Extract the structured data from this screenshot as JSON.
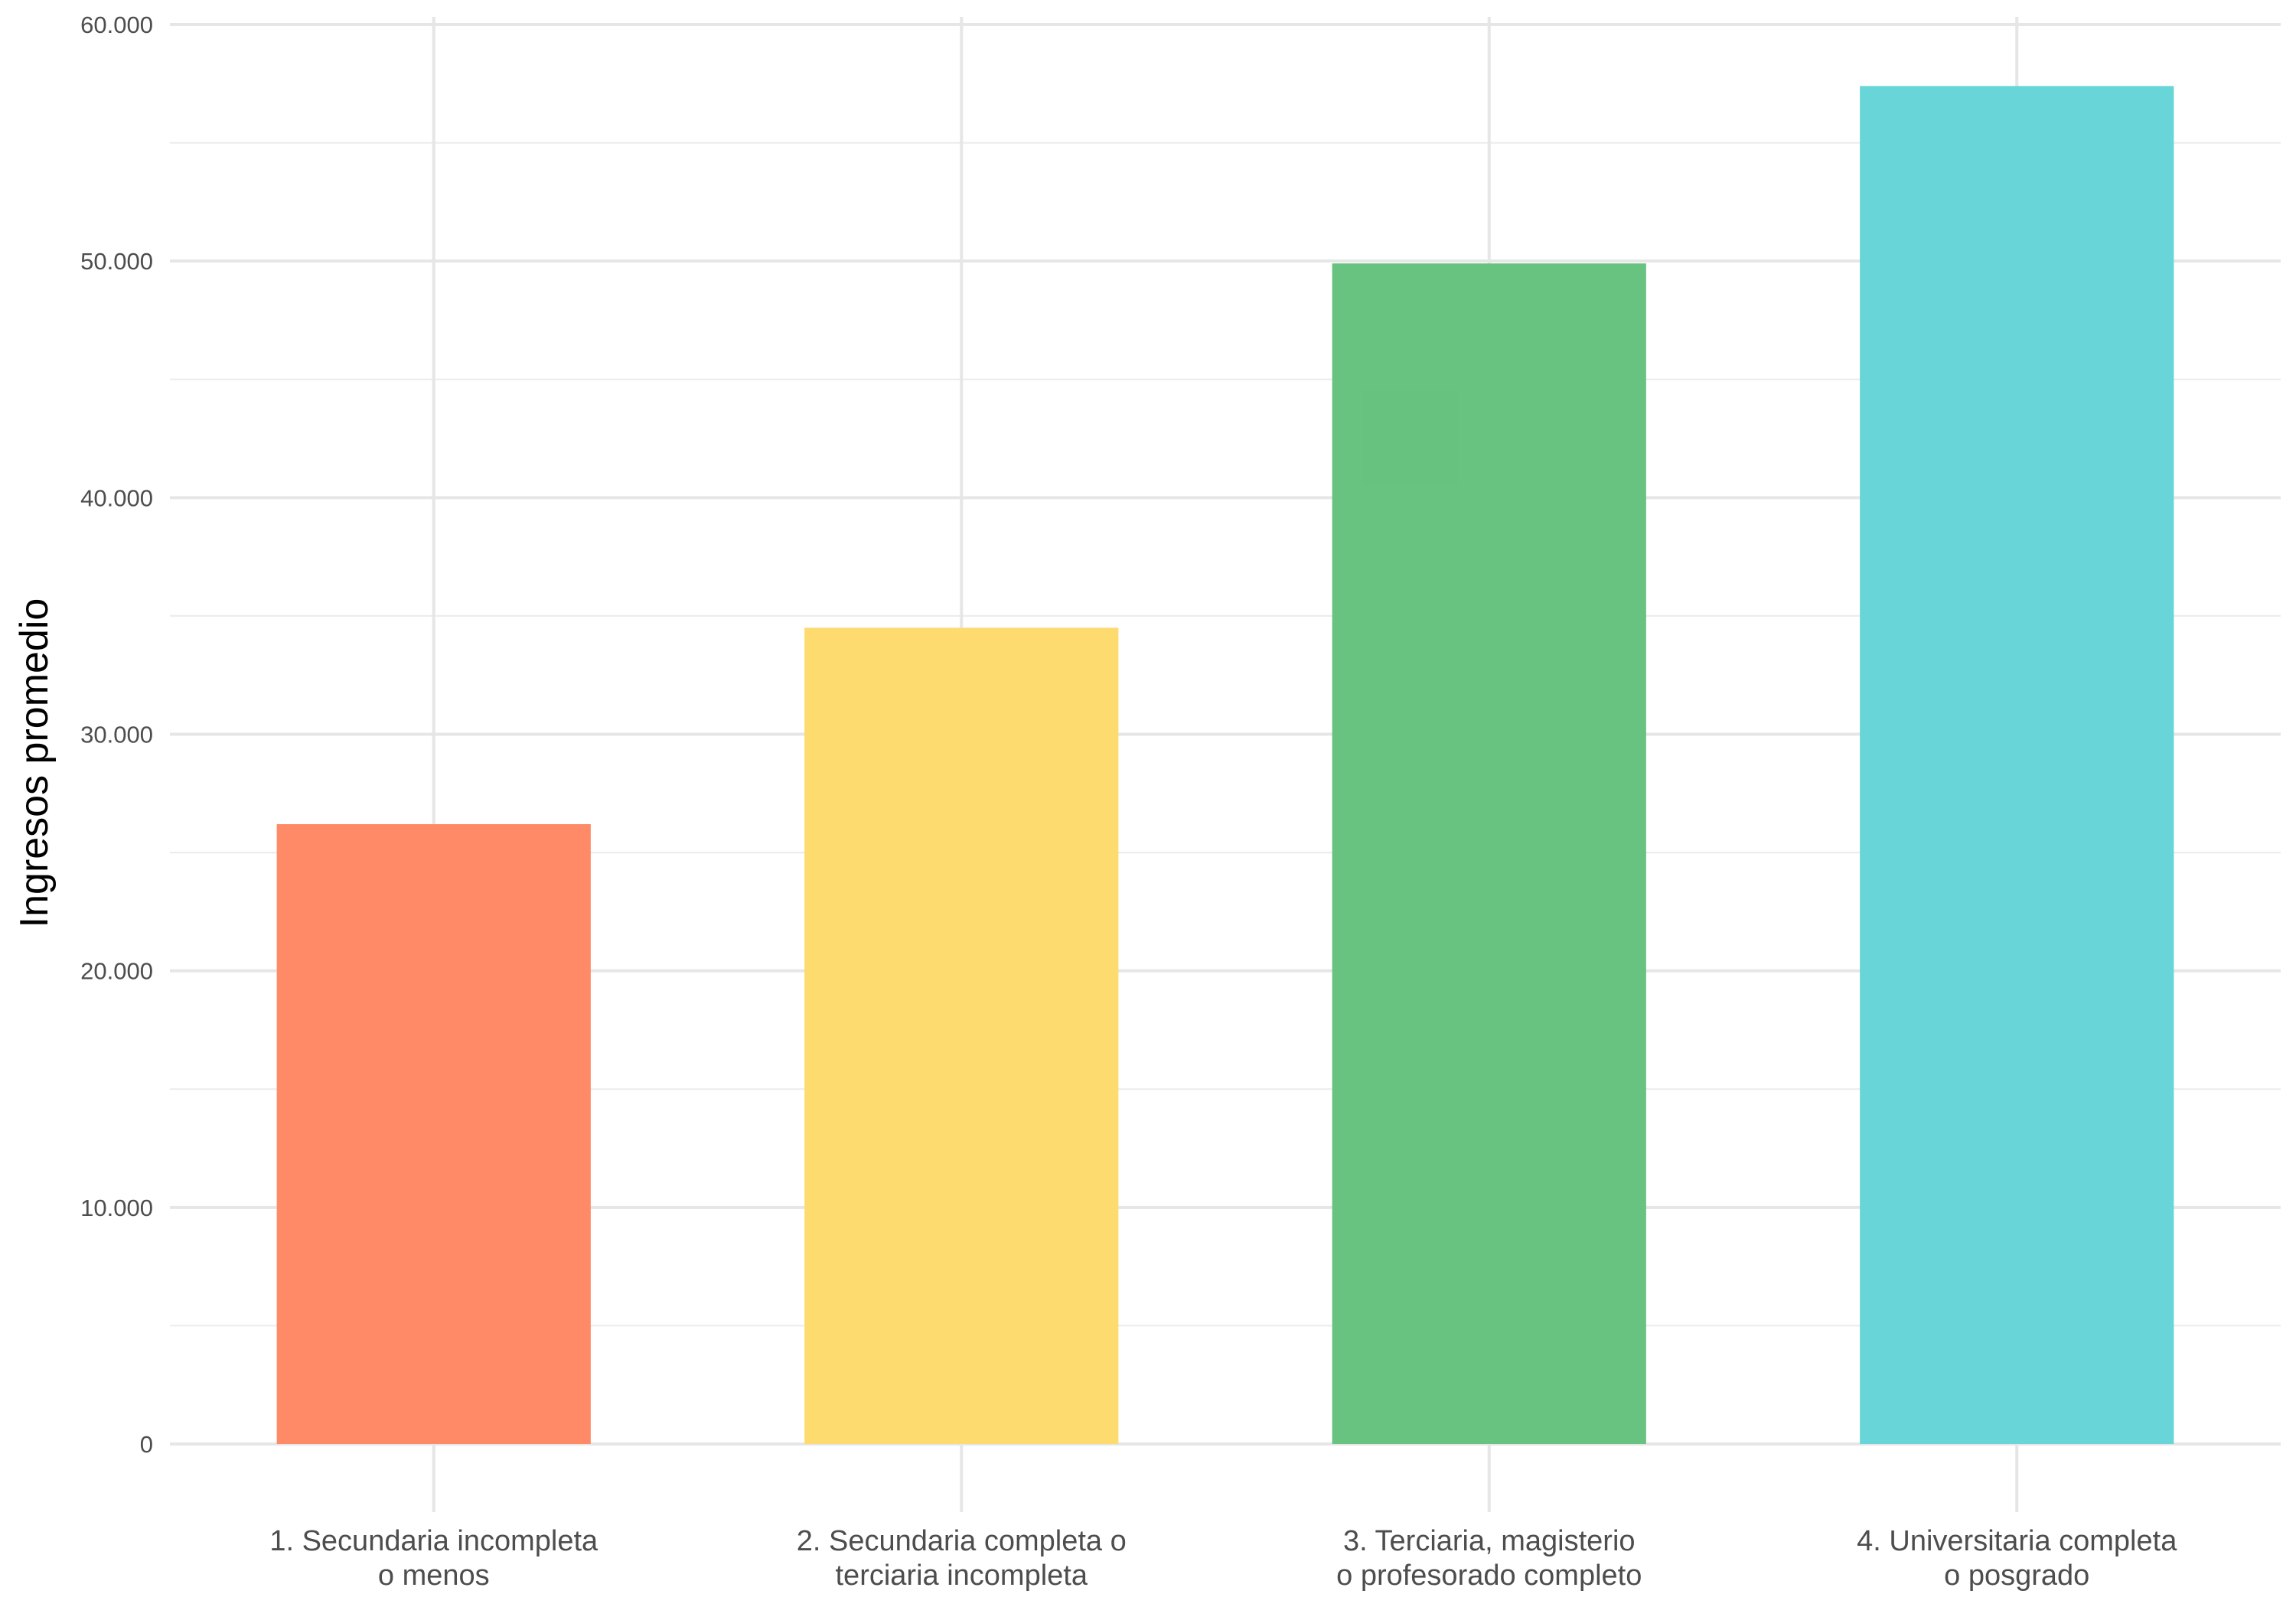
{
  "chart_data": {
    "type": "bar",
    "categories": [
      [
        "1. Secundaria incompleta",
        "o menos"
      ],
      [
        "2. Secundaria completa o",
        "terciaria incompleta"
      ],
      [
        "3. Terciaria, magisterio",
        "o profesorado completo"
      ],
      [
        "4. Universitaria completa",
        "o posgrado"
      ]
    ],
    "values": [
      26200,
      34500,
      49900,
      57400
    ],
    "colors": [
      "#FF8966",
      "#FDDB6D",
      "#66C17E",
      "#66D5D8"
    ],
    "xlabel": "",
    "ylabel": "Ingresos promedio",
    "ylim": [
      0,
      60000
    ],
    "yticks": [
      0,
      10000,
      20000,
      30000,
      40000,
      50000,
      60000
    ],
    "ytick_labels": [
      "0",
      "10.000",
      "20.000",
      "30.000",
      "40.000",
      "50.000",
      "60.000"
    ],
    "grid": true,
    "legend": "none"
  }
}
